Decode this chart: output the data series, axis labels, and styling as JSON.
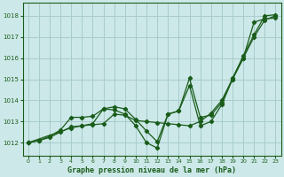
{
  "bg_color": "#cce8e8",
  "grid_color": "#a8cccc",
  "line_color": "#1a5c1a",
  "title": "Graphe pression niveau de la mer (hPa)",
  "xlim": [
    -0.5,
    23.5
  ],
  "ylim": [
    1011.4,
    1018.6
  ],
  "yticks": [
    1012,
    1013,
    1014,
    1015,
    1016,
    1017,
    1018
  ],
  "xticks": [
    0,
    1,
    2,
    3,
    4,
    5,
    6,
    7,
    8,
    9,
    10,
    11,
    12,
    13,
    14,
    15,
    16,
    17,
    18,
    19,
    20,
    21,
    22,
    23
  ],
  "series1_x": [
    0,
    1,
    2,
    3,
    4,
    5,
    6,
    7,
    8,
    9,
    10,
    11,
    12,
    13,
    14,
    15,
    16,
    17,
    18,
    19,
    20,
    21,
    22,
    23
  ],
  "series1_y": [
    1012.0,
    1012.1,
    1012.25,
    1012.5,
    1012.75,
    1012.8,
    1012.85,
    1012.9,
    1013.35,
    1013.3,
    1013.05,
    1013.0,
    1012.95,
    1012.9,
    1012.85,
    1012.8,
    1013.0,
    1013.4,
    1014.0,
    1015.0,
    1016.0,
    1017.0,
    1017.8,
    1018.0
  ],
  "series2_x": [
    0,
    1,
    2,
    3,
    4,
    5,
    6,
    7,
    8,
    9,
    10,
    11,
    12,
    13,
    14,
    15,
    16,
    17,
    18,
    19,
    20,
    21,
    22,
    23
  ],
  "series2_y": [
    1012.0,
    1012.1,
    1012.3,
    1012.6,
    1013.2,
    1013.2,
    1013.25,
    1013.6,
    1013.55,
    1013.35,
    1012.8,
    1012.0,
    1011.75,
    1013.35,
    1013.5,
    1014.7,
    1012.8,
    1013.0,
    1013.8,
    1015.0,
    1016.0,
    1017.7,
    1017.85,
    1017.9
  ],
  "series3_x": [
    0,
    4,
    5,
    6,
    7,
    8,
    9,
    10,
    11,
    12,
    13,
    14,
    15,
    16,
    17,
    18,
    19,
    20,
    21,
    22,
    23
  ],
  "series3_y": [
    1012.0,
    1012.7,
    1012.8,
    1012.9,
    1013.6,
    1013.7,
    1013.6,
    1013.1,
    1012.55,
    1012.05,
    1013.35,
    1013.5,
    1015.05,
    1013.2,
    1013.3,
    1013.9,
    1015.05,
    1016.1,
    1017.1,
    1018.0,
    1018.05
  ]
}
